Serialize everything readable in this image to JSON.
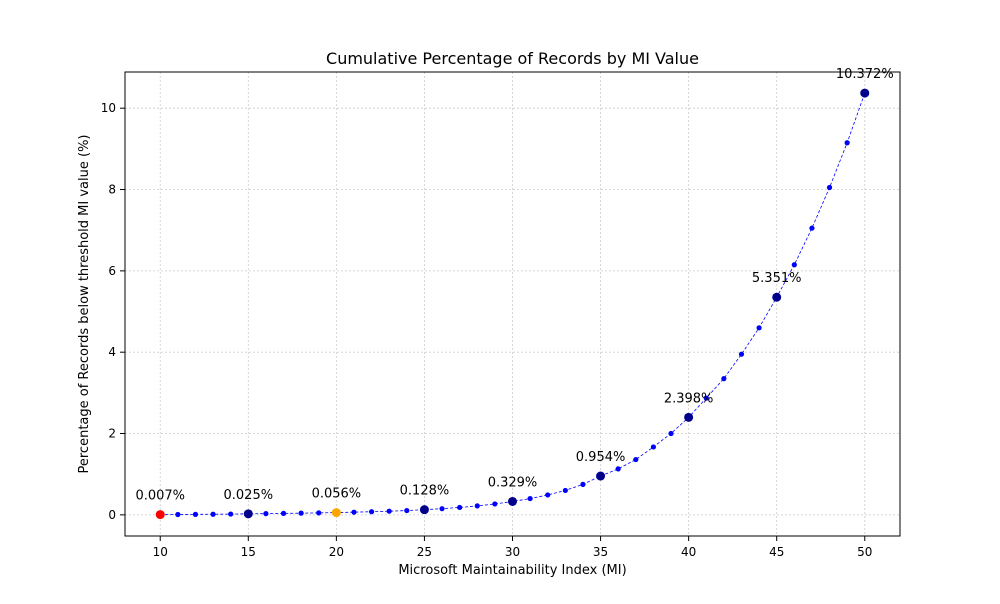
{
  "chart_data": {
    "type": "line",
    "title": "Cumulative Percentage of Records by MI Value",
    "xlabel": "Microsoft Maintainability Index (MI)",
    "ylabel": "Percentage of Records below threshold MI value (%)",
    "xlim": [
      8,
      52
    ],
    "ylim": [
      -0.52,
      10.89
    ],
    "xticks": [
      10,
      15,
      20,
      25,
      30,
      35,
      40,
      45,
      50
    ],
    "yticks": [
      0,
      2,
      4,
      6,
      8,
      10
    ],
    "grid": true,
    "series": [
      {
        "line_color": "#0000ff",
        "marker_color": "#0000ff",
        "line_style": "dashed",
        "x": [
          10,
          11,
          12,
          13,
          14,
          15,
          16,
          17,
          18,
          19,
          20,
          21,
          22,
          23,
          24,
          25,
          26,
          27,
          28,
          29,
          30,
          31,
          32,
          33,
          34,
          35,
          36,
          37,
          38,
          39,
          40,
          41,
          42,
          43,
          44,
          45,
          46,
          47,
          48,
          49,
          50
        ],
        "y": [
          0.007,
          0.009,
          0.012,
          0.015,
          0.019,
          0.025,
          0.03,
          0.036,
          0.042,
          0.048,
          0.056,
          0.066,
          0.077,
          0.09,
          0.105,
          0.128,
          0.152,
          0.182,
          0.22,
          0.268,
          0.329,
          0.4,
          0.49,
          0.6,
          0.75,
          0.954,
          1.13,
          1.36,
          1.67,
          2.0,
          2.398,
          2.87,
          3.35,
          3.95,
          4.6,
          5.351,
          6.15,
          7.05,
          8.05,
          9.15,
          10.372
        ]
      }
    ],
    "highlighted_points": [
      {
        "x": 10,
        "y": 0.007,
        "label": "0.007%",
        "color": "#ff0000"
      },
      {
        "x": 15,
        "y": 0.025,
        "label": "0.025%",
        "color": "#00008b"
      },
      {
        "x": 20,
        "y": 0.056,
        "label": "0.056%",
        "color": "#ffa500"
      },
      {
        "x": 25,
        "y": 0.128,
        "label": "0.128%",
        "color": "#00008b"
      },
      {
        "x": 30,
        "y": 0.329,
        "label": "0.329%",
        "color": "#00008b"
      },
      {
        "x": 35,
        "y": 0.954,
        "label": "0.954%",
        "color": "#00008b"
      },
      {
        "x": 40,
        "y": 2.398,
        "label": "2.398%",
        "color": "#00008b"
      },
      {
        "x": 45,
        "y": 5.351,
        "label": "5.351%",
        "color": "#00008b"
      },
      {
        "x": 50,
        "y": 10.372,
        "label": "10.372%",
        "color": "#00008b"
      }
    ]
  }
}
